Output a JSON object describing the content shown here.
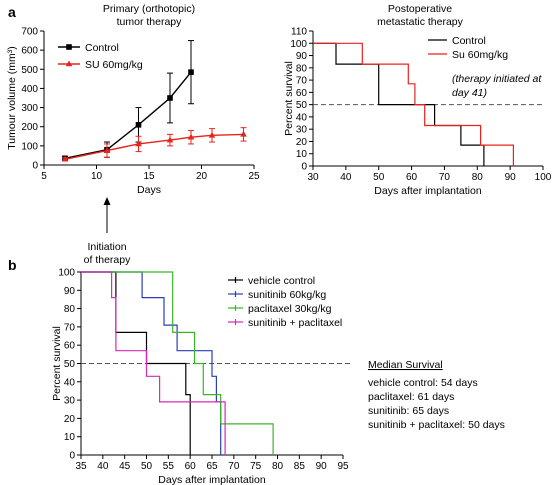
{
  "panels": {
    "a": "a",
    "b": "b"
  },
  "chart_data": [
    {
      "type": "line",
      "title": "Primary (orthotopic) tumor therapy",
      "xlabel": "Days",
      "ylabel": "Tumour volume (mm³)",
      "xlim": [
        5,
        25
      ],
      "ylim": [
        0,
        700
      ],
      "xticks": [
        5,
        10,
        15,
        20,
        25
      ],
      "yticks": [
        0,
        100,
        200,
        300,
        400,
        500,
        600,
        700
      ],
      "legend_position": "top-left",
      "series": [
        {
          "name": "Control",
          "color": "#000000",
          "marker": "square",
          "x": [
            7,
            11,
            14,
            17,
            19
          ],
          "y": [
            35,
            80,
            210,
            350,
            485
          ],
          "err": [
            10,
            40,
            90,
            130,
            165
          ]
        },
        {
          "name": "SU 60mg/kg",
          "color": "#e8231c",
          "marker": "triangle",
          "x": [
            7,
            11,
            14,
            17,
            19,
            21,
            24
          ],
          "y": [
            30,
            75,
            110,
            130,
            145,
            155,
            160
          ],
          "err": [
            8,
            35,
            40,
            30,
            35,
            35,
            35
          ]
        }
      ],
      "annotation": {
        "text_lines": [
          "Initiation",
          "of therapy"
        ],
        "x": 11
      }
    },
    {
      "type": "line",
      "title": "Postoperative metastatic therapy",
      "xlabel": "Days after implantation",
      "ylabel": "Percent survival",
      "xlim": [
        30,
        100
      ],
      "ylim": [
        0,
        110
      ],
      "xticks": [
        30,
        40,
        50,
        60,
        70,
        80,
        90,
        100
      ],
      "yticks": [
        0,
        10,
        20,
        30,
        40,
        50,
        60,
        70,
        80,
        90,
        100,
        110
      ],
      "reference_line": 50,
      "legend_position": "top-right",
      "legend_note": "(therapy initiated at day 41)",
      "series": [
        {
          "name": "Control",
          "color": "#000000",
          "x": [
            30,
            37,
            37,
            50,
            50,
            63,
            63,
            67,
            67,
            75,
            75,
            82,
            82
          ],
          "y": [
            100,
            100,
            83,
            83,
            50,
            50,
            50,
            50,
            33,
            33,
            17,
            17,
            0
          ]
        },
        {
          "name": "Su 60mg/kg",
          "color": "#e8231c",
          "x": [
            30,
            45,
            45,
            59,
            59,
            61,
            61,
            64,
            64,
            81,
            81,
            91,
            91
          ],
          "y": [
            100,
            100,
            83,
            83,
            67,
            67,
            50,
            50,
            33,
            33,
            17,
            17,
            0
          ]
        }
      ]
    },
    {
      "type": "line",
      "title": "",
      "xlabel": "Days after implantation",
      "ylabel": "Percent survival",
      "xlim": [
        35,
        95
      ],
      "ylim": [
        0,
        100
      ],
      "xticks": [
        35,
        40,
        45,
        50,
        55,
        60,
        65,
        70,
        75,
        80,
        85,
        90,
        95
      ],
      "yticks": [
        0,
        10,
        20,
        30,
        40,
        50,
        60,
        70,
        80,
        90,
        100
      ],
      "reference_line": 50,
      "legend_position": "top-right",
      "series": [
        {
          "name": "vehicle control",
          "color": "#000000",
          "x": [
            35,
            43,
            43,
            50,
            50,
            59,
            59,
            60,
            60
          ],
          "y": [
            100,
            100,
            67,
            67,
            50,
            50,
            33,
            33,
            0
          ]
        },
        {
          "name": "sunitinib 60kg/kg",
          "color": "#2a3fb5",
          "x": [
            35,
            49,
            49,
            54,
            54,
            57,
            57,
            65,
            65,
            66,
            66,
            67,
            67
          ],
          "y": [
            100,
            100,
            86,
            86,
            71,
            71,
            57,
            57,
            43,
            43,
            29,
            29,
            0
          ]
        },
        {
          "name": "paclitaxel 30kg/kg",
          "color": "#3cb52a",
          "x": [
            35,
            56,
            56,
            61,
            61,
            63,
            63,
            67,
            67,
            74,
            74,
            79,
            79
          ],
          "y": [
            100,
            100,
            67,
            67,
            50,
            50,
            33,
            33,
            17,
            17,
            17,
            17,
            0
          ]
        },
        {
          "name": "sunitinib + paclitaxel",
          "color": "#d62ab8",
          "x": [
            35,
            42,
            42,
            43,
            43,
            50,
            50,
            53,
            53,
            59,
            59,
            66,
            66,
            68,
            68
          ],
          "y": [
            100,
            100,
            86,
            86,
            57,
            57,
            43,
            43,
            29,
            29,
            29,
            29,
            29,
            29,
            0
          ]
        }
      ],
      "median_survival": {
        "heading": "Median Survival",
        "lines": [
          "vehicle control: 54 days",
          "paclitaxel: 61 days",
          "sunitinib: 65 days",
          "sunitinib + paclitaxel: 50 days"
        ]
      }
    }
  ]
}
